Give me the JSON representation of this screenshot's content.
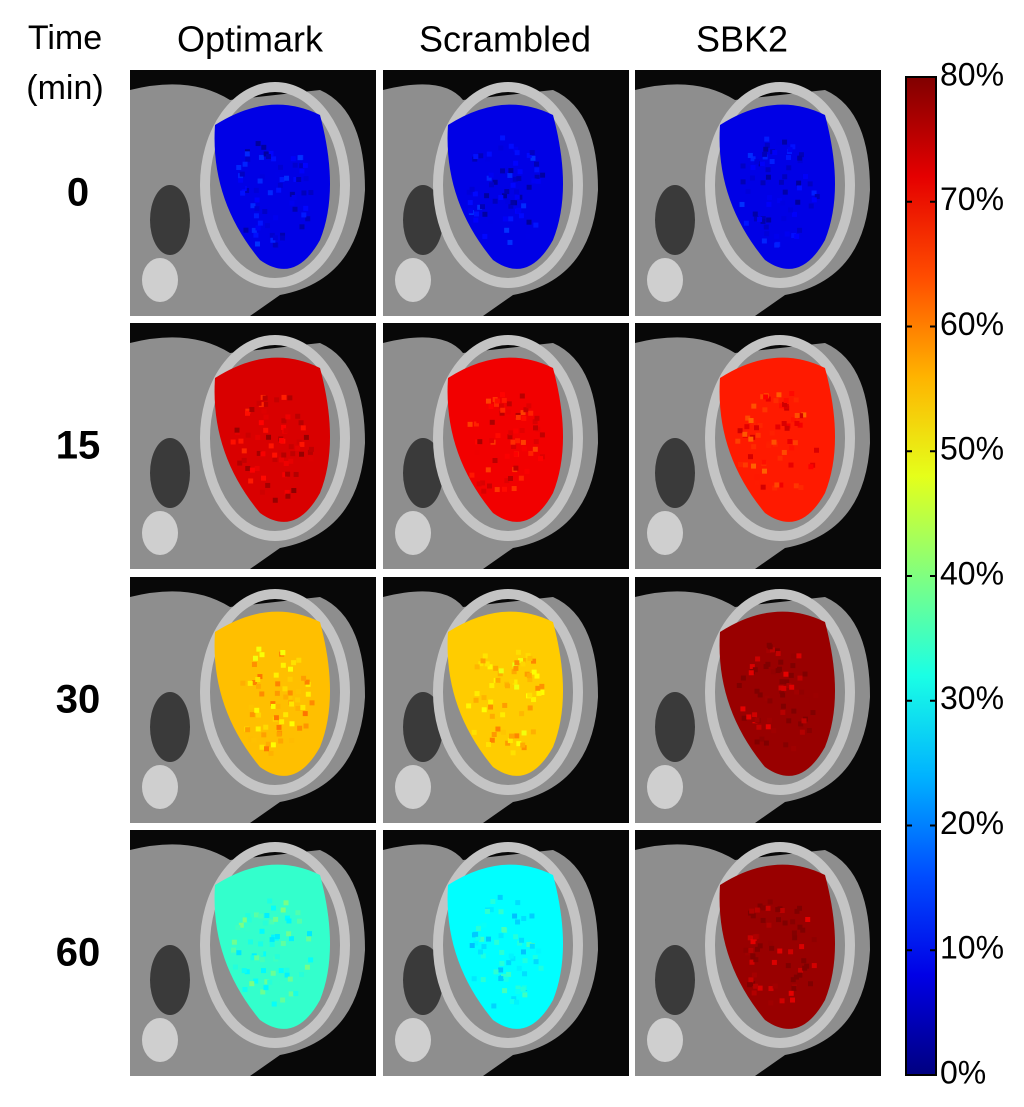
{
  "time_label": "Time",
  "time_unit": "(min)",
  "columns": [
    "Optimark",
    "Scrambled",
    "SBK2"
  ],
  "rows": [
    {
      "time": 0,
      "levels": [
        8,
        8,
        8
      ]
    },
    {
      "time": 15,
      "levels": [
        73,
        71,
        68
      ]
    },
    {
      "time": 30,
      "levels": [
        55,
        54,
        78
      ]
    },
    {
      "time": 60,
      "levels": [
        34,
        30,
        78
      ]
    }
  ],
  "colorbar": {
    "clim": [
      0,
      80
    ],
    "ticks": [
      {
        "value": 0,
        "label": "0%"
      },
      {
        "value": 10,
        "label": "10%"
      },
      {
        "value": 20,
        "label": "20%"
      },
      {
        "value": 30,
        "label": "30%"
      },
      {
        "value": 40,
        "label": "40%"
      },
      {
        "value": 50,
        "label": "50%"
      },
      {
        "value": 60,
        "label": "60%"
      },
      {
        "value": 70,
        "label": "70%"
      },
      {
        "value": 80,
        "label": "80%"
      }
    ]
  }
}
